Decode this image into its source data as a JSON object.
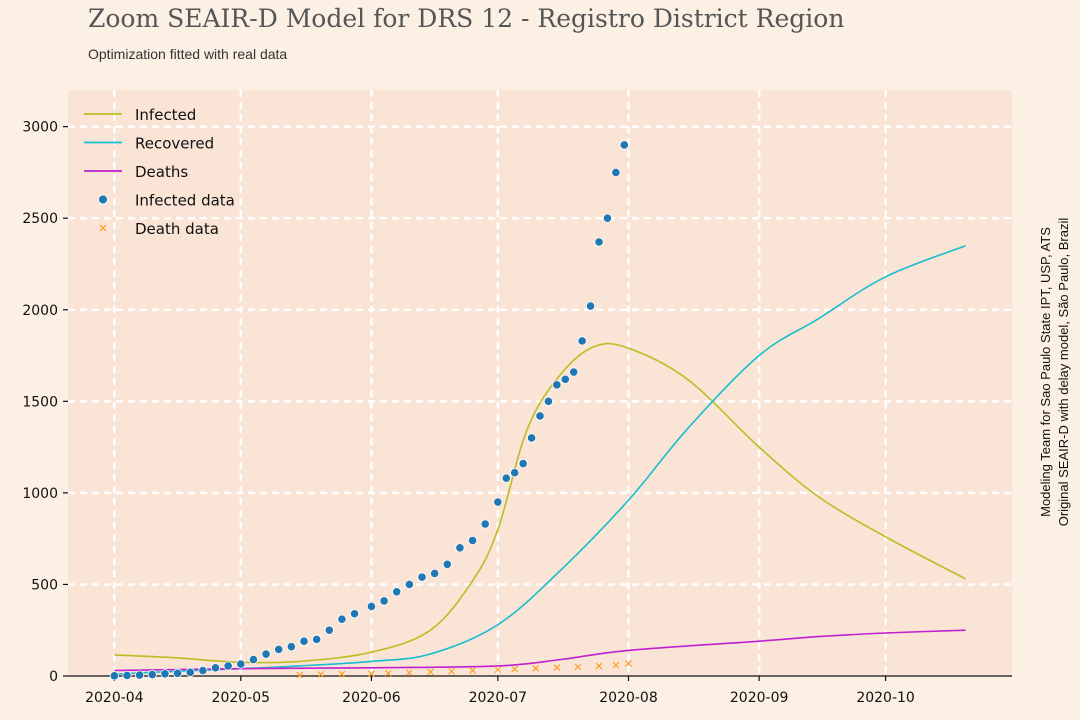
{
  "title": "Zoom SEAIR-D Model for DRS 12 - Registro District Region",
  "subtitle": "Optimization fitted with real data",
  "side_credit": {
    "line1": "Modeling Team for Sao Paulo State IPT, USP, ATS",
    "line2": "Original SEAIR-D with delay model, São Paulo, Brazil"
  },
  "colors": {
    "background": "#fcefe3",
    "plot_bg": "#f9e4d6",
    "grid": "#ffffff",
    "infected": "#bcbd22",
    "recovered": "#17becf",
    "deaths": "#c020d0",
    "infected_data": "#1f77b4",
    "death_data": "#ff9a1a"
  },
  "chart_data": {
    "type": "line",
    "x_type": "date",
    "xlim": [
      "2020-03-21",
      "2020-10-31"
    ],
    "ylim": [
      0,
      3200
    ],
    "x_ticks": [
      "2020-04-01",
      "2020-05-01",
      "2020-06-01",
      "2020-07-01",
      "2020-08-01",
      "2020-09-01",
      "2020-10-01"
    ],
    "x_tick_labels": [
      "2020-04",
      "2020-05",
      "2020-06",
      "2020-07",
      "2020-08",
      "2020-09",
      "2020-10"
    ],
    "y_ticks": [
      0,
      500,
      1000,
      1500,
      2000,
      2500,
      3000
    ],
    "y_tick_labels": [
      "0",
      "500",
      "1000",
      "1500",
      "2000",
      "2500",
      "3000"
    ],
    "grid": true,
    "grid_style": "dashed",
    "legend_position": "top-left",
    "series": [
      {
        "name": "Infected",
        "kind": "line",
        "color": "#bcbd22",
        "points": [
          [
            "2020-04-01",
            115
          ],
          [
            "2020-04-15",
            100
          ],
          [
            "2020-05-01",
            75
          ],
          [
            "2020-05-15",
            80
          ],
          [
            "2020-06-01",
            130
          ],
          [
            "2020-06-15",
            250
          ],
          [
            "2020-06-25",
            520
          ],
          [
            "2020-07-01",
            800
          ],
          [
            "2020-07-08",
            1350
          ],
          [
            "2020-07-16",
            1650
          ],
          [
            "2020-07-24",
            1800
          ],
          [
            "2020-08-01",
            1790
          ],
          [
            "2020-08-15",
            1620
          ],
          [
            "2020-09-01",
            1250
          ],
          [
            "2020-09-15",
            980
          ],
          [
            "2020-10-01",
            760
          ],
          [
            "2020-10-20",
            530
          ]
        ]
      },
      {
        "name": "Recovered",
        "kind": "line",
        "color": "#17becf",
        "points": [
          [
            "2020-04-01",
            10
          ],
          [
            "2020-04-15",
            25
          ],
          [
            "2020-05-01",
            40
          ],
          [
            "2020-05-15",
            55
          ],
          [
            "2020-06-01",
            80
          ],
          [
            "2020-06-15",
            120
          ],
          [
            "2020-07-01",
            280
          ],
          [
            "2020-07-16",
            580
          ],
          [
            "2020-08-01",
            960
          ],
          [
            "2020-08-15",
            1350
          ],
          [
            "2020-09-01",
            1750
          ],
          [
            "2020-09-15",
            1950
          ],
          [
            "2020-10-01",
            2180
          ],
          [
            "2020-10-20",
            2350
          ]
        ]
      },
      {
        "name": "Deaths",
        "kind": "line",
        "color": "#c020d0",
        "points": [
          [
            "2020-04-01",
            30
          ],
          [
            "2020-05-01",
            40
          ],
          [
            "2020-06-01",
            45
          ],
          [
            "2020-07-01",
            55
          ],
          [
            "2020-07-16",
            90
          ],
          [
            "2020-08-01",
            140
          ],
          [
            "2020-09-01",
            190
          ],
          [
            "2020-09-15",
            215
          ],
          [
            "2020-10-01",
            235
          ],
          [
            "2020-10-20",
            250
          ]
        ]
      },
      {
        "name": "Infected data",
        "kind": "scatter",
        "marker": "circle",
        "color": "#1f77b4",
        "points": [
          [
            "2020-04-01",
            1
          ],
          [
            "2020-04-04",
            3
          ],
          [
            "2020-04-07",
            5
          ],
          [
            "2020-04-10",
            8
          ],
          [
            "2020-04-13",
            12
          ],
          [
            "2020-04-16",
            15
          ],
          [
            "2020-04-19",
            20
          ],
          [
            "2020-04-22",
            30
          ],
          [
            "2020-04-25",
            45
          ],
          [
            "2020-04-28",
            55
          ],
          [
            "2020-05-01",
            65
          ],
          [
            "2020-05-04",
            90
          ],
          [
            "2020-05-07",
            120
          ],
          [
            "2020-05-10",
            145
          ],
          [
            "2020-05-13",
            160
          ],
          [
            "2020-05-16",
            190
          ],
          [
            "2020-05-19",
            200
          ],
          [
            "2020-05-22",
            250
          ],
          [
            "2020-05-25",
            310
          ],
          [
            "2020-05-28",
            340
          ],
          [
            "2020-06-01",
            380
          ],
          [
            "2020-06-04",
            410
          ],
          [
            "2020-06-07",
            460
          ],
          [
            "2020-06-10",
            500
          ],
          [
            "2020-06-13",
            540
          ],
          [
            "2020-06-16",
            560
          ],
          [
            "2020-06-19",
            610
          ],
          [
            "2020-06-22",
            700
          ],
          [
            "2020-06-25",
            740
          ],
          [
            "2020-06-28",
            830
          ],
          [
            "2020-07-01",
            950
          ],
          [
            "2020-07-03",
            1080
          ],
          [
            "2020-07-05",
            1110
          ],
          [
            "2020-07-07",
            1160
          ],
          [
            "2020-07-09",
            1300
          ],
          [
            "2020-07-11",
            1420
          ],
          [
            "2020-07-13",
            1500
          ],
          [
            "2020-07-15",
            1590
          ],
          [
            "2020-07-17",
            1620
          ],
          [
            "2020-07-19",
            1660
          ],
          [
            "2020-07-21",
            1830
          ],
          [
            "2020-07-23",
            2020
          ],
          [
            "2020-07-25",
            2370
          ],
          [
            "2020-07-27",
            2500
          ],
          [
            "2020-07-29",
            2750
          ],
          [
            "2020-07-31",
            2900
          ]
        ]
      },
      {
        "name": "Death data",
        "kind": "scatter",
        "marker": "x",
        "color": "#ff9a1a",
        "points": [
          [
            "2020-05-15",
            5
          ],
          [
            "2020-05-20",
            8
          ],
          [
            "2020-05-25",
            10
          ],
          [
            "2020-06-01",
            12
          ],
          [
            "2020-06-05",
            15
          ],
          [
            "2020-06-10",
            18
          ],
          [
            "2020-06-15",
            22
          ],
          [
            "2020-06-20",
            26
          ],
          [
            "2020-06-25",
            30
          ],
          [
            "2020-07-01",
            35
          ],
          [
            "2020-07-05",
            38
          ],
          [
            "2020-07-10",
            42
          ],
          [
            "2020-07-15",
            46
          ],
          [
            "2020-07-20",
            50
          ],
          [
            "2020-07-25",
            55
          ],
          [
            "2020-07-29",
            60
          ],
          [
            "2020-08-01",
            68
          ]
        ]
      }
    ]
  }
}
